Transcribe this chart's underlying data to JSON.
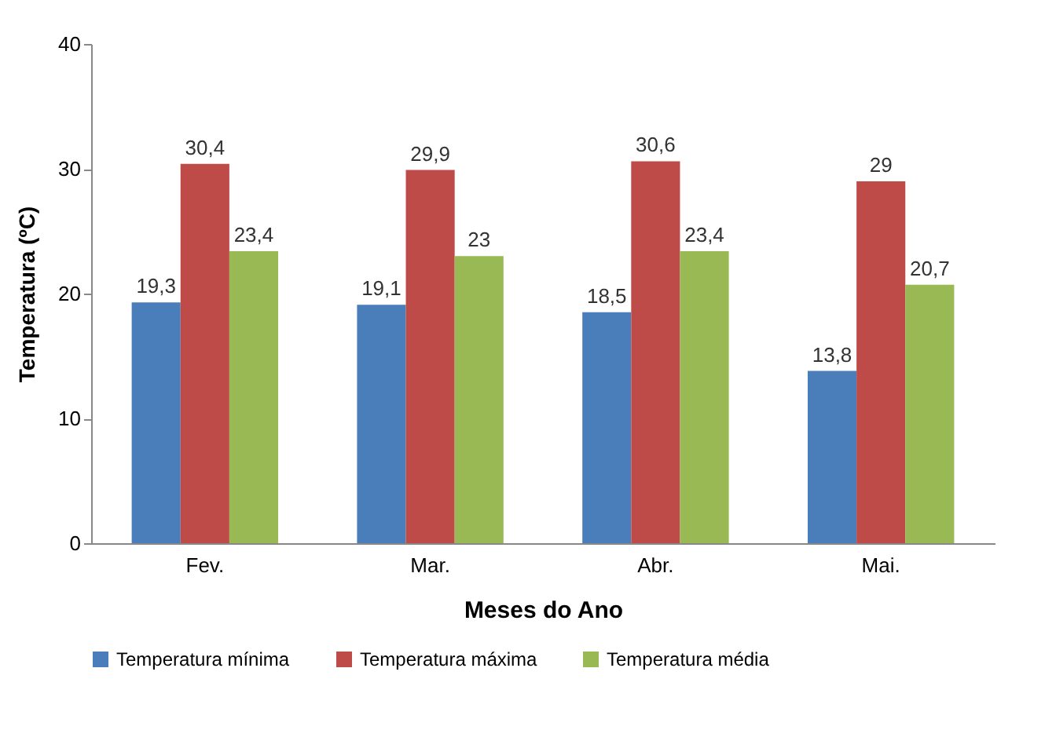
{
  "chart_data": {
    "type": "bar",
    "xlabel": "Meses do Ano",
    "ylabel": "Temperatura (ºC)",
    "categories": [
      "Fev.",
      "Mar.",
      "Abr.",
      "Mai."
    ],
    "series": [
      {
        "name": "Temperatura mínima",
        "color": "#4a7ebb",
        "values": [
          19.3,
          19.1,
          18.5,
          13.8
        ],
        "value_labels": [
          "19,3",
          "19,1",
          "18,5",
          "13,8"
        ]
      },
      {
        "name": "Temperatura máxima",
        "color": "#be4b48",
        "values": [
          30.4,
          29.9,
          30.6,
          29
        ],
        "value_labels": [
          "30,4",
          "29,9",
          "30,6",
          "29"
        ]
      },
      {
        "name": "Temperatura média",
        "color": "#98b954",
        "values": [
          23.4,
          23,
          23.4,
          20.7
        ],
        "value_labels": [
          "23,4",
          "23",
          "23,4",
          "20,7"
        ]
      }
    ],
    "ylim": [
      0,
      40
    ],
    "yticks": [
      0,
      10,
      20,
      30,
      40
    ],
    "grid": false,
    "legend": "bottom"
  }
}
